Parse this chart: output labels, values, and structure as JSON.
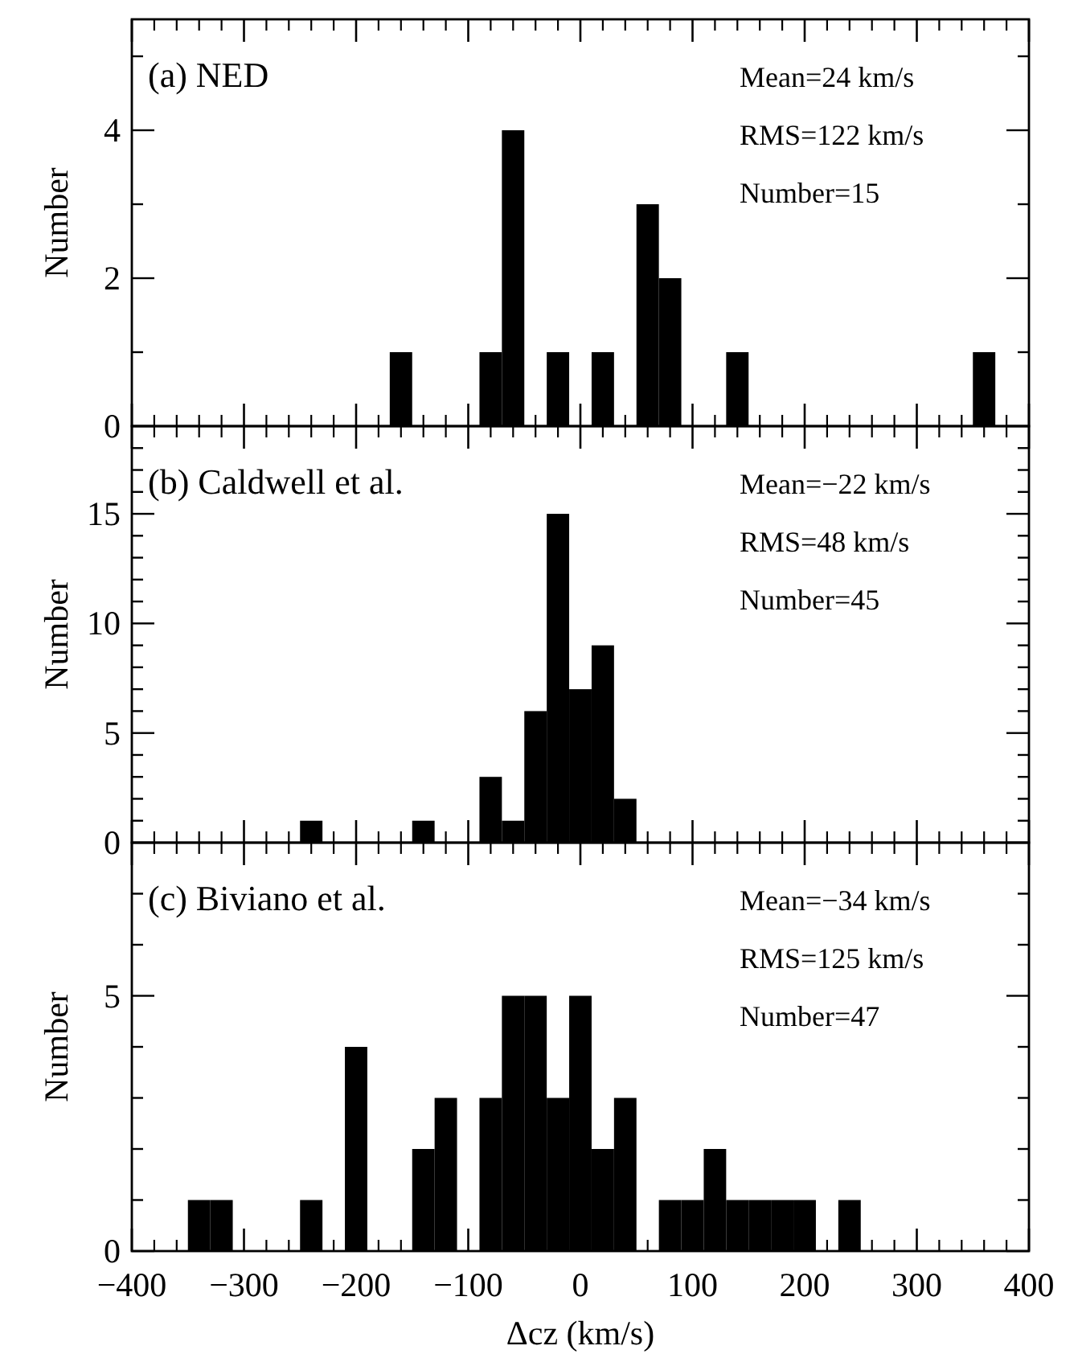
{
  "chart_data": [
    {
      "type": "histogram",
      "title": "(a) NED",
      "ylabel": "Number",
      "annotations": [
        "Mean=24 km/s",
        "RMS=122 km/s",
        "Number=15"
      ],
      "color": "#000000",
      "bins": [
        -390,
        -370,
        -350,
        -330,
        -310,
        -290,
        -270,
        -250,
        -230,
        -210,
        -190,
        -170,
        -150,
        -130,
        -110,
        -90,
        -70,
        -50,
        -30,
        -10,
        10,
        30,
        50,
        70,
        90,
        110,
        130,
        150,
        170,
        190,
        210,
        230,
        250,
        270,
        290,
        310,
        330,
        350,
        370,
        390
      ],
      "values": [
        0,
        0,
        0,
        0,
        0,
        0,
        0,
        0,
        0,
        0,
        0,
        1,
        0,
        0,
        0,
        1,
        4,
        0,
        1,
        0,
        1,
        0,
        3,
        2,
        0,
        0,
        1,
        0,
        0,
        0,
        0,
        0,
        0,
        0,
        0,
        0,
        0,
        1,
        0
      ],
      "xlim": [
        -400,
        400
      ],
      "xticks": [
        -400,
        -300,
        -200,
        -100,
        0,
        100,
        200,
        300,
        400
      ],
      "ylim": [
        0,
        5.5
      ],
      "yticks": [
        0,
        {
          "value": 1,
          "label": null
        },
        2,
        {
          "value": 3,
          "label": null
        },
        4,
        {
          "value": 5,
          "label": null
        }
      ],
      "tick_labels": "y"
    },
    {
      "type": "histogram",
      "title": "(b) Caldwell et al.",
      "ylabel": "Number",
      "annotations": [
        "Mean=−22 km/s",
        "RMS=48 km/s",
        "Number=45"
      ],
      "color": "#000000",
      "bins": [
        -390,
        -370,
        -350,
        -330,
        -310,
        -290,
        -270,
        -250,
        -230,
        -210,
        -190,
        -170,
        -150,
        -130,
        -110,
        -90,
        -70,
        -50,
        -30,
        -10,
        10,
        30,
        50,
        70,
        90,
        110,
        130,
        150,
        170,
        190,
        210,
        230,
        250,
        270,
        290,
        310,
        330,
        350,
        370,
        390
      ],
      "values": [
        0,
        0,
        0,
        0,
        0,
        0,
        0,
        1,
        0,
        0,
        0,
        0,
        1,
        0,
        0,
        3,
        1,
        6,
        15,
        7,
        9,
        2,
        0,
        0,
        0,
        0,
        0,
        0,
        0,
        0,
        0,
        0,
        0,
        0,
        0,
        0,
        0,
        0,
        0
      ],
      "xlim": [
        -400,
        400
      ],
      "xticks": [
        -400,
        -300,
        -200,
        -100,
        0,
        100,
        200,
        300,
        400
      ],
      "ylim": [
        0,
        19
      ],
      "yticks": [
        0,
        {
          "value": 1,
          "label": null
        },
        {
          "value": 2,
          "label": null
        },
        {
          "value": 3,
          "label": null
        },
        {
          "value": 4,
          "label": null
        },
        5,
        {
          "value": 6,
          "label": null
        },
        {
          "value": 7,
          "label": null
        },
        {
          "value": 8,
          "label": null
        },
        {
          "value": 9,
          "label": null
        },
        10,
        {
          "value": 11,
          "label": null
        },
        {
          "value": 12,
          "label": null
        },
        {
          "value": 13,
          "label": null
        },
        {
          "value": 14,
          "label": null
        },
        15,
        {
          "value": 16,
          "label": null
        },
        {
          "value": 17,
          "label": null
        },
        {
          "value": 18,
          "label": null
        }
      ],
      "tick_labels": "y"
    },
    {
      "type": "histogram",
      "title": "(c) Biviano et al.",
      "xlabel": "Δcz (km/s)",
      "ylabel": "Number",
      "annotations": [
        "Mean=−34 km/s",
        "RMS=125 km/s",
        "Number=47"
      ],
      "color": "#000000",
      "bins": [
        -390,
        -370,
        -350,
        -330,
        -310,
        -290,
        -270,
        -250,
        -230,
        -210,
        -190,
        -170,
        -150,
        -130,
        -110,
        -90,
        -70,
        -50,
        -30,
        -10,
        10,
        30,
        50,
        70,
        90,
        110,
        130,
        150,
        170,
        190,
        210,
        230,
        250,
        270,
        290,
        310,
        330,
        350,
        370,
        390
      ],
      "values": [
        0,
        0,
        1,
        1,
        0,
        0,
        0,
        1,
        0,
        4,
        0,
        0,
        2,
        3,
        0,
        3,
        5,
        5,
        3,
        5,
        2,
        3,
        0,
        1,
        1,
        2,
        1,
        1,
        1,
        1,
        0,
        1,
        0,
        0,
        0,
        0,
        0,
        0,
        0
      ],
      "xlim": [
        -400,
        400
      ],
      "xticks": [
        -400,
        -300,
        -200,
        -100,
        0,
        100,
        200,
        300,
        400
      ],
      "ylim": [
        0,
        8
      ],
      "yticks": [
        0,
        {
          "value": 1,
          "label": null
        },
        {
          "value": 2,
          "label": null
        },
        {
          "value": 3,
          "label": null
        },
        {
          "value": 4,
          "label": null
        },
        5,
        {
          "value": 6,
          "label": null
        },
        {
          "value": 7,
          "label": null
        }
      ]
    }
  ]
}
